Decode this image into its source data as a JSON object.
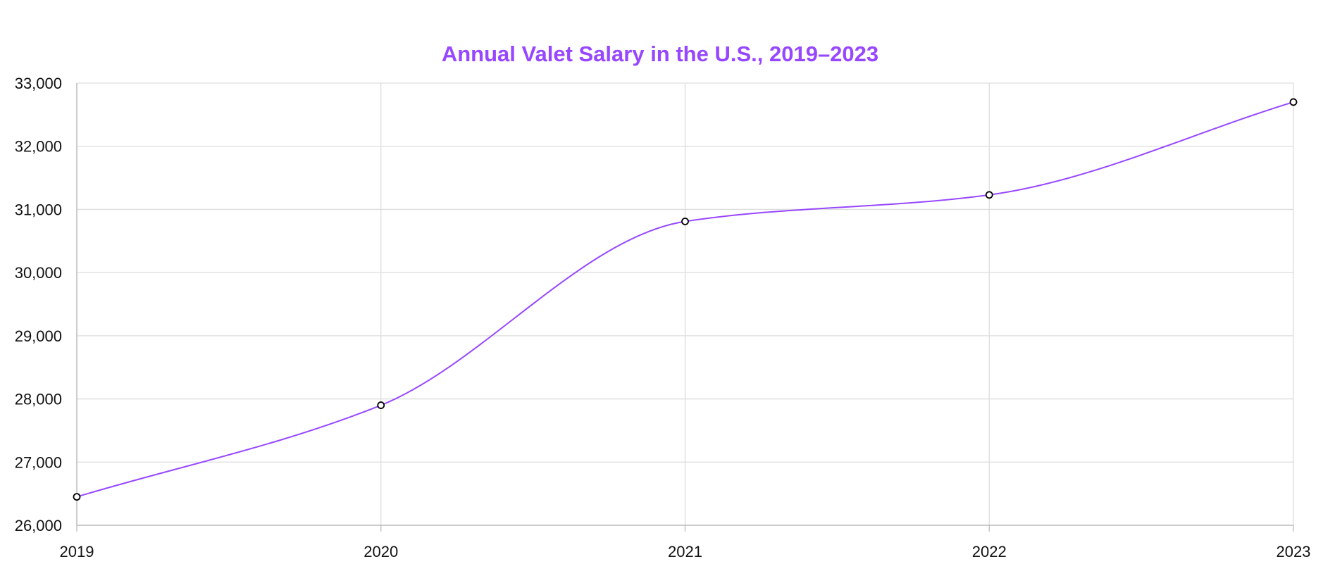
{
  "chart_data": {
    "type": "line",
    "title": "Annual Valet Salary in the U.S., 2019–2023",
    "xlabel": "",
    "ylabel": "",
    "categories": [
      "2019",
      "2020",
      "2021",
      "2022",
      "2023"
    ],
    "series": [
      {
        "values": [
          26450,
          27900,
          30810,
          31230,
          32700
        ]
      }
    ],
    "ylim": [
      26000,
      33000
    ],
    "yticks": [
      "26,000",
      "27,000",
      "28,000",
      "29,000",
      "30,000",
      "31,000",
      "32,000",
      "33,000"
    ],
    "grid": true,
    "legend": "none",
    "line_style": "smooth",
    "colors": {
      "title": "#9747ff",
      "line": "#9747ff",
      "marker_stroke": "#000000",
      "marker_fill": "#ffffff",
      "grid": "#dddddd",
      "axis": "#bbbbbb"
    }
  }
}
